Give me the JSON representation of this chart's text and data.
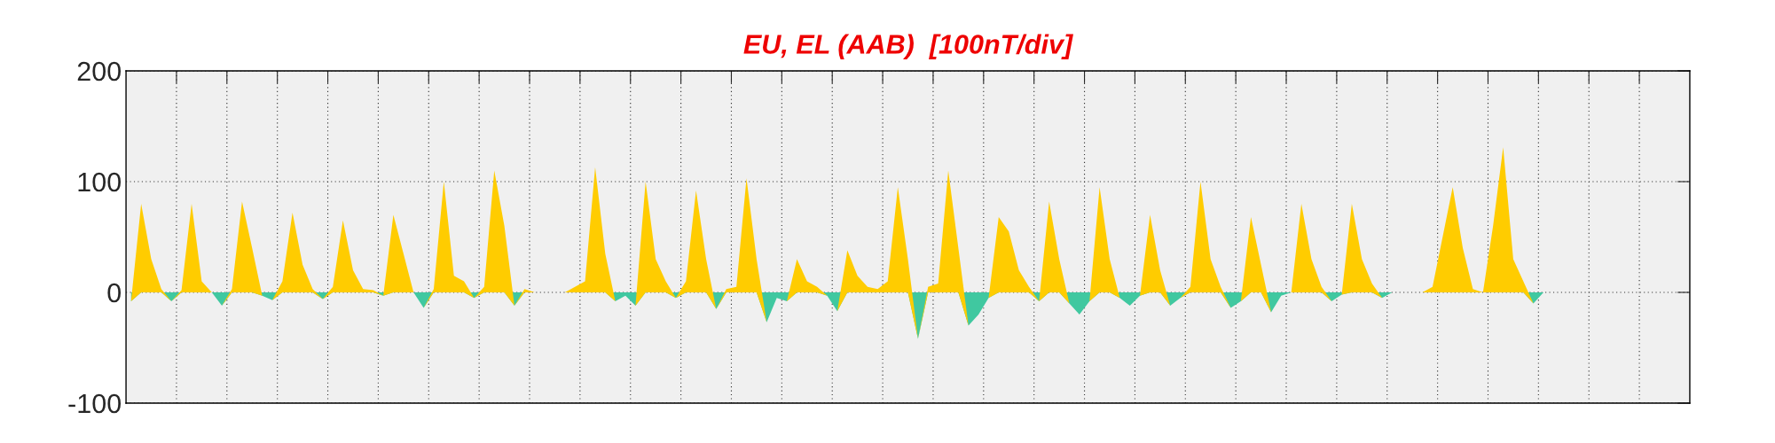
{
  "chart_data": {
    "type": "area",
    "title": "EU, EL (AAB)  [100nT/div]",
    "categories": [
      null,
      null,
      null,
      null,
      null,
      null,
      null,
      null,
      null,
      null,
      null,
      null,
      null,
      null,
      null,
      null,
      null,
      null,
      null,
      null,
      null,
      null,
      null,
      null,
      null,
      null,
      null,
      null,
      null,
      null,
      null,
      null,
      null,
      null,
      null,
      null,
      null,
      null,
      null,
      null,
      null,
      null,
      null,
      null,
      null,
      null,
      null,
      null,
      null,
      null,
      null,
      null,
      null,
      null,
      null,
      null,
      null,
      null,
      null,
      null,
      null,
      null,
      null,
      null,
      null,
      null,
      null,
      null,
      null,
      null,
      null,
      null,
      null,
      null,
      null,
      null,
      null,
      null,
      null,
      null,
      null,
      null,
      null,
      null,
      null,
      null,
      null,
      null,
      null,
      null,
      null,
      null,
      null,
      null,
      null,
      null,
      null,
      null,
      null,
      null,
      null,
      null,
      null,
      null,
      null,
      null,
      null,
      null,
      null,
      null,
      null,
      null,
      null,
      null,
      null,
      null,
      null,
      null,
      null,
      null,
      null,
      null,
      null,
      null,
      null,
      null,
      null,
      null,
      null,
      null,
      null,
      null,
      null,
      null,
      null,
      null,
      null,
      null,
      null,
      null,
      null,
      null,
      null,
      null,
      null,
      null,
      null,
      null,
      null,
      null,
      null,
      null,
      null,
      null,
      null
    ],
    "series": [
      {
        "color": "#40c8a0",
        "values": [
          -8,
          0,
          0,
          0,
          -8,
          0,
          0,
          0,
          0,
          -12,
          0,
          0,
          0,
          -3,
          -7,
          0,
          0,
          0,
          0,
          -6,
          0,
          0,
          0,
          0,
          0,
          -3,
          0,
          0,
          0,
          -14,
          0,
          0,
          0,
          0,
          -5,
          0,
          0,
          0,
          -12,
          0,
          0,
          0,
          0,
          0,
          0,
          0,
          0,
          0,
          -8,
          -3,
          -12,
          0,
          0,
          0,
          -5,
          0,
          0,
          0,
          -15,
          0,
          0,
          0,
          0,
          -27,
          -5,
          -8,
          0,
          0,
          0,
          -3,
          -17,
          0,
          0,
          0,
          0,
          0,
          0,
          0,
          -42,
          0,
          0,
          0,
          0,
          -30,
          -20,
          -5,
          0,
          0,
          0,
          0,
          -8,
          0,
          0,
          -10,
          -20,
          -8,
          0,
          0,
          -5,
          -12,
          -3,
          0,
          0,
          -12,
          -5,
          0,
          0,
          0,
          0,
          -14,
          -8,
          0,
          0,
          -18,
          -3,
          0,
          0,
          0,
          0,
          -8,
          -2,
          0,
          0,
          0,
          -5,
          0,
          0,
          0,
          0,
          0,
          0,
          0,
          0,
          0,
          0,
          0,
          0,
          0,
          0,
          -10,
          0,
          0,
          0,
          0,
          0,
          0,
          0,
          0,
          0,
          0,
          0,
          0,
          0,
          0,
          0
        ]
      },
      {
        "color": "#ffcc00",
        "values": [
          0,
          80,
          30,
          3,
          0,
          2,
          80,
          10,
          0,
          0,
          3,
          82,
          40,
          0,
          0,
          10,
          72,
          25,
          3,
          0,
          5,
          65,
          20,
          3,
          2,
          0,
          70,
          35,
          0,
          0,
          3,
          100,
          15,
          10,
          0,
          5,
          110,
          60,
          0,
          3,
          0,
          0,
          0,
          0,
          5,
          10,
          113,
          35,
          0,
          0,
          0,
          100,
          30,
          10,
          0,
          10,
          92,
          30,
          0,
          3,
          5,
          103,
          30,
          0,
          0,
          0,
          30,
          10,
          5,
          0,
          0,
          38,
          15,
          5,
          3,
          10,
          95,
          30,
          0,
          5,
          8,
          110,
          40,
          0,
          0,
          0,
          68,
          55,
          20,
          5,
          0,
          82,
          30,
          0,
          0,
          0,
          95,
          30,
          0,
          0,
          0,
          70,
          20,
          0,
          0,
          5,
          100,
          30,
          5,
          0,
          0,
          68,
          25,
          0,
          0,
          0,
          80,
          30,
          5,
          0,
          0,
          80,
          30,
          8,
          0,
          0,
          0,
          0,
          0,
          5,
          50,
          95,
          40,
          3,
          0,
          60,
          131,
          30,
          10,
          0,
          0,
          0,
          0,
          0,
          0,
          0,
          0,
          0,
          0,
          0,
          0,
          0,
          0,
          0,
          0
        ]
      }
    ],
    "ylim": [
      -100,
      200
    ],
    "yticks": [
      -100,
      0,
      100,
      200
    ],
    "stacked": true,
    "grid": true,
    "tick_labels": "y"
  }
}
